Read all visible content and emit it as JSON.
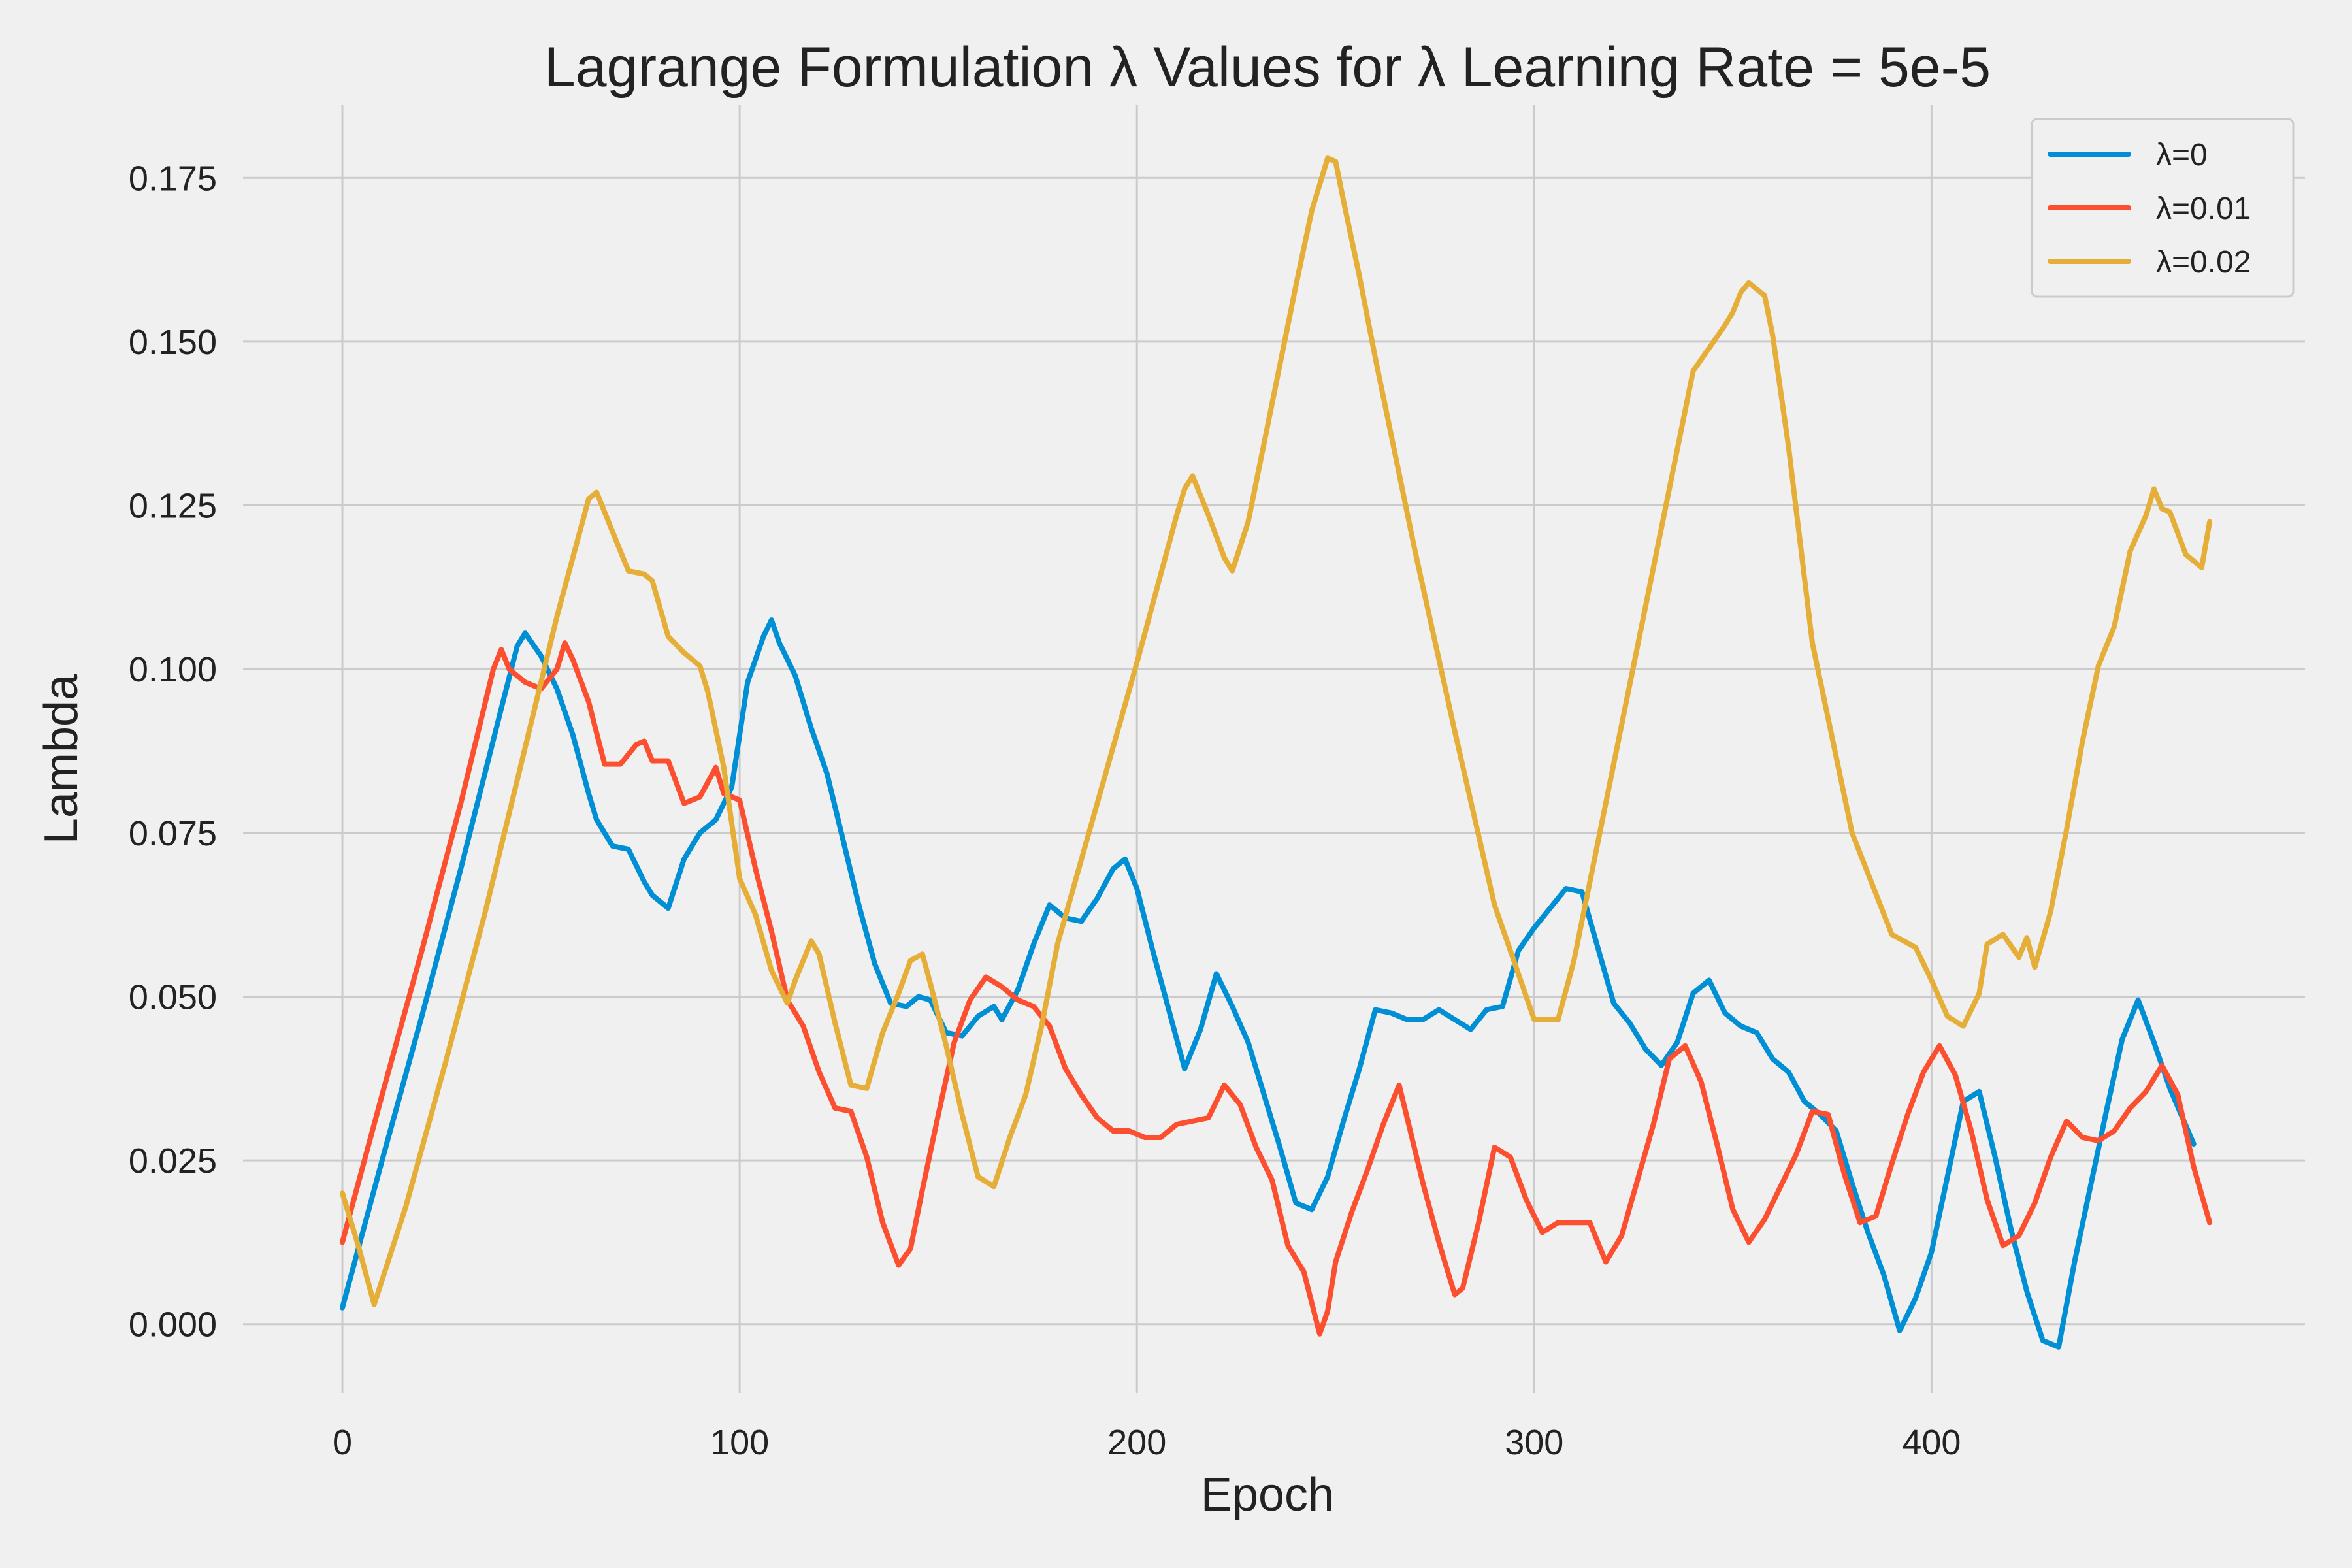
{
  "chart_data": {
    "type": "line",
    "title": "Lagrange Formulation λ Values for λ Learning Rate = 5e-5",
    "xlabel": "Epoch",
    "ylabel": "Lambda",
    "xlim": [
      -25,
      494
    ],
    "ylim": [
      -0.0105,
      0.1862
    ],
    "xticks": [
      0,
      100,
      200,
      300,
      400
    ],
    "yticks": [
      0.0,
      0.025,
      0.05,
      0.075,
      0.1,
      0.125,
      0.15,
      0.175
    ],
    "xtick_labels": [
      "0",
      "100",
      "200",
      "300",
      "400"
    ],
    "ytick_labels": [
      "0.000",
      "0.025",
      "0.050",
      "0.075",
      "0.100",
      "0.125",
      "0.150",
      "0.175"
    ],
    "grid": true,
    "legend": "top-right",
    "series": [
      {
        "name": "λ=0",
        "color": "#008fd5",
        "x": [
          0,
          10,
          20,
          30,
          40,
          44,
          46,
          50,
          54,
          58,
          62,
          64,
          68,
          72,
          76,
          78,
          82,
          86,
          90,
          94,
          98,
          102,
          106,
          108,
          110,
          114,
          118,
          122,
          126,
          130,
          134,
          138,
          142,
          145,
          148,
          152,
          156,
          160,
          164,
          166,
          170,
          174,
          178,
          182,
          186,
          190,
          194,
          197,
          200,
          204,
          208,
          212,
          216,
          220,
          224,
          228,
          232,
          236,
          240,
          244,
          248,
          252,
          256,
          260,
          264,
          268,
          272,
          276,
          280,
          284,
          288,
          292,
          296,
          300,
          304,
          308,
          312,
          316,
          320,
          324,
          328,
          332,
          336,
          340,
          344,
          348,
          352,
          356,
          360,
          364,
          368,
          372,
          376,
          380,
          384,
          388,
          392,
          396,
          400,
          404,
          408,
          412,
          416,
          420,
          424,
          428,
          432,
          436,
          440,
          444,
          448,
          452,
          456,
          460,
          466
        ],
        "y": [
          0.0025,
          0.025,
          0.047,
          0.07,
          0.094,
          0.1035,
          0.1055,
          0.102,
          0.097,
          0.09,
          0.081,
          0.077,
          0.073,
          0.0725,
          0.0675,
          0.0655,
          0.0635,
          0.071,
          0.075,
          0.077,
          0.082,
          0.098,
          0.105,
          0.1075,
          0.104,
          0.099,
          0.091,
          0.084,
          0.074,
          0.064,
          0.055,
          0.049,
          0.0485,
          0.05,
          0.0495,
          0.0445,
          0.044,
          0.047,
          0.0485,
          0.0465,
          0.051,
          0.058,
          0.064,
          0.062,
          0.0615,
          0.065,
          0.0695,
          0.071,
          0.0665,
          0.057,
          0.048,
          0.039,
          0.045,
          0.0535,
          0.0485,
          0.043,
          0.035,
          0.027,
          0.0185,
          0.0175,
          0.0225,
          0.031,
          0.039,
          0.048,
          0.0475,
          0.0465,
          0.0465,
          0.048,
          0.0465,
          0.045,
          0.048,
          0.0485,
          0.057,
          0.0605,
          0.0635,
          0.0665,
          0.066,
          0.0575,
          0.049,
          0.046,
          0.042,
          0.0395,
          0.043,
          0.0505,
          0.0525,
          0.0475,
          0.0455,
          0.0445,
          0.0405,
          0.0385,
          0.034,
          0.032,
          0.0295,
          0.0215,
          0.014,
          0.0075,
          -0.001,
          0.004,
          0.011,
          0.0225,
          0.034,
          0.0355,
          0.0255,
          0.0145,
          0.005,
          -0.0025,
          -0.0035,
          0.0095,
          0.021,
          0.0325,
          0.0435,
          0.0495,
          0.043,
          0.036,
          0.0275
        ]
      },
      {
        "name": "λ=0.01",
        "color": "#fc4f30",
        "x": [
          0,
          10,
          20,
          30,
          38,
          40,
          42,
          46,
          50,
          54,
          56,
          58,
          62,
          66,
          70,
          74,
          76,
          78,
          82,
          86,
          90,
          94,
          96,
          100,
          104,
          108,
          112,
          116,
          120,
          124,
          128,
          132,
          136,
          140,
          143,
          146,
          150,
          154,
          158,
          162,
          166,
          170,
          174,
          178,
          182,
          186,
          190,
          194,
          198,
          202,
          206,
          210,
          214,
          218,
          222,
          226,
          230,
          234,
          238,
          242,
          246,
          248,
          250,
          254,
          258,
          262,
          266,
          268,
          272,
          276,
          280,
          282,
          286,
          290,
          294,
          298,
          302,
          306,
          310,
          314,
          318,
          322,
          326,
          330,
          334,
          338,
          342,
          346,
          350,
          354,
          358,
          362,
          366,
          370,
          374,
          378,
          382,
          386,
          390,
          394,
          398,
          402,
          406,
          410,
          414,
          418,
          422,
          426,
          430,
          434,
          438,
          442,
          446,
          450,
          454,
          458,
          462,
          466,
          470
        ],
        "y": [
          0.0125,
          0.035,
          0.057,
          0.08,
          0.1,
          0.103,
          0.1,
          0.098,
          0.097,
          0.1,
          0.104,
          0.1015,
          0.095,
          0.0855,
          0.0855,
          0.0885,
          0.089,
          0.086,
          0.086,
          0.0795,
          0.0805,
          0.085,
          0.081,
          0.08,
          0.0695,
          0.06,
          0.0495,
          0.0455,
          0.0385,
          0.033,
          0.0325,
          0.0255,
          0.0155,
          0.009,
          0.0115,
          0.0205,
          0.032,
          0.043,
          0.0495,
          0.053,
          0.0515,
          0.0495,
          0.0485,
          0.0455,
          0.039,
          0.035,
          0.0315,
          0.0295,
          0.0295,
          0.0285,
          0.0285,
          0.0305,
          0.031,
          0.0315,
          0.0365,
          0.0335,
          0.027,
          0.022,
          0.012,
          0.008,
          -0.0015,
          0.002,
          0.0095,
          0.017,
          0.0235,
          0.0305,
          0.0365,
          0.0315,
          0.0215,
          0.0125,
          0.0045,
          0.0055,
          0.0155,
          0.027,
          0.0255,
          0.019,
          0.014,
          0.0155,
          0.0155,
          0.0155,
          0.0095,
          0.0135,
          0.022,
          0.0305,
          0.0405,
          0.0425,
          0.037,
          0.0275,
          0.0175,
          0.0125,
          0.016,
          0.021,
          0.026,
          0.0325,
          0.032,
          0.023,
          0.0155,
          0.0165,
          0.0245,
          0.032,
          0.0385,
          0.0425,
          0.038,
          0.0295,
          0.019,
          0.012,
          0.0135,
          0.0185,
          0.0255,
          0.031,
          0.0285,
          0.028,
          0.0295,
          0.033,
          0.0355,
          0.0395,
          0.035,
          0.024,
          0.0155
        ]
      },
      {
        "name": "λ=0.02",
        "color": "#e5ae38",
        "x": [
          0,
          4,
          8,
          16,
          26,
          36,
          46,
          54,
          58,
          62,
          64,
          68,
          72,
          76,
          78,
          82,
          86,
          90,
          92,
          96,
          100,
          104,
          108,
          112,
          114,
          118,
          120,
          124,
          128,
          132,
          136,
          140,
          143,
          146,
          148,
          152,
          156,
          160,
          164,
          168,
          172,
          176,
          180,
          190,
          200,
          210,
          212,
          214,
          218,
          222,
          224,
          228,
          232,
          236,
          240,
          244,
          248,
          250,
          252,
          256,
          260,
          270,
          280,
          290,
          300,
          306,
          310,
          320,
          330,
          340,
          348,
          350,
          352,
          354,
          356,
          358,
          360,
          364,
          370,
          380,
          390,
          396,
          400,
          404,
          408,
          412,
          414,
          418,
          422,
          424,
          426,
          430,
          434,
          438,
          442,
          446,
          450,
          454,
          456,
          458,
          460,
          464,
          468,
          470
        ],
        "y": [
          0.02,
          0.012,
          0.003,
          0.018,
          0.04,
          0.063,
          0.088,
          0.108,
          0.117,
          0.126,
          0.127,
          0.121,
          0.115,
          0.1145,
          0.1135,
          0.105,
          0.1025,
          0.1005,
          0.0965,
          0.085,
          0.068,
          0.0625,
          0.054,
          0.049,
          0.0525,
          0.0585,
          0.0565,
          0.046,
          0.0365,
          0.036,
          0.0445,
          0.0505,
          0.0555,
          0.0565,
          0.052,
          0.0425,
          0.032,
          0.0225,
          0.021,
          0.0285,
          0.035,
          0.0455,
          0.058,
          0.0795,
          0.101,
          0.1235,
          0.1275,
          0.1295,
          0.1235,
          0.117,
          0.115,
          0.1225,
          0.1345,
          0.1465,
          0.1585,
          0.17,
          0.178,
          0.1775,
          0.1715,
          0.16,
          0.1475,
          0.118,
          0.0905,
          0.064,
          0.0465,
          0.0465,
          0.0555,
          0.0855,
          0.1155,
          0.1455,
          0.1525,
          0.1545,
          0.1575,
          0.159,
          0.158,
          0.157,
          0.151,
          0.134,
          0.104,
          0.075,
          0.0595,
          0.0575,
          0.0525,
          0.047,
          0.0455,
          0.0505,
          0.058,
          0.0595,
          0.056,
          0.059,
          0.0545,
          0.063,
          0.0755,
          0.089,
          0.1005,
          0.1065,
          0.118,
          0.1235,
          0.1275,
          0.1245,
          0.124,
          0.1175,
          0.1155,
          0.1225
        ]
      }
    ]
  }
}
